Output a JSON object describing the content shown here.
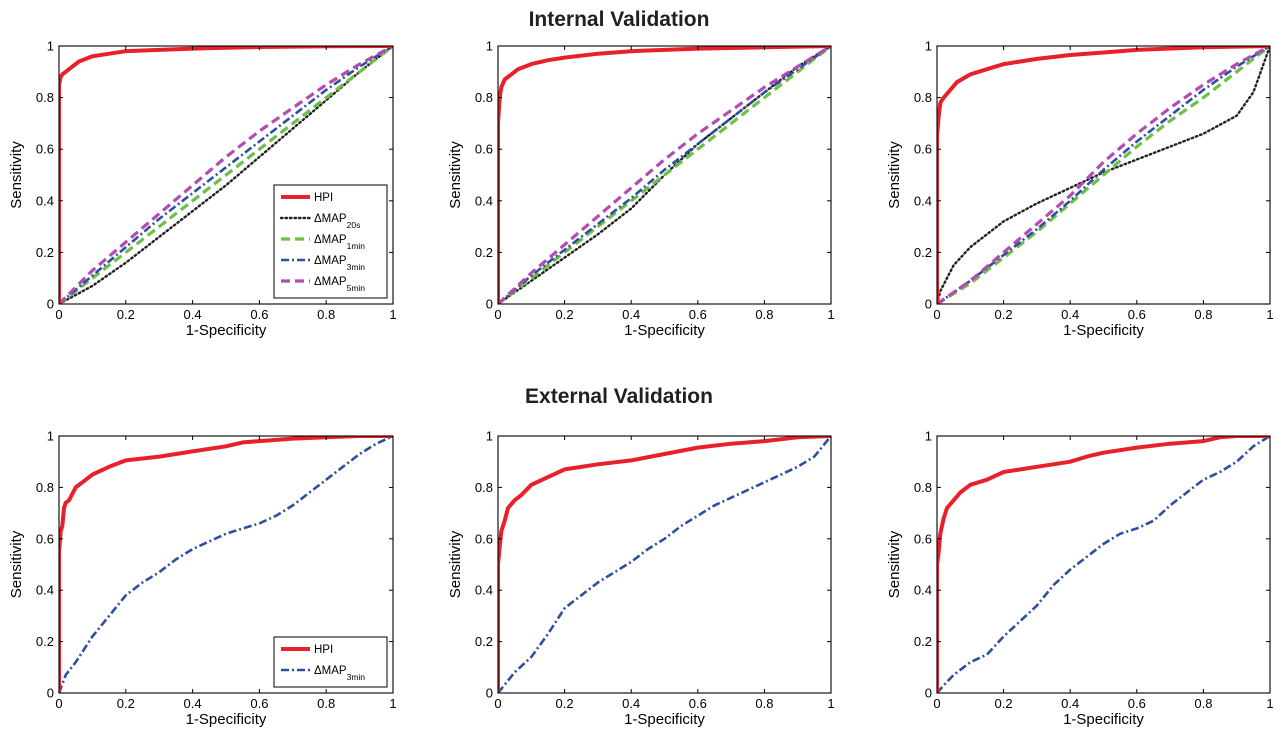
{
  "figure": {
    "top_section_title": "Internal Validation",
    "bottom_section_title": "External Validation"
  },
  "chart_data": [
    {
      "type": "line",
      "section": "Internal Validation",
      "xlabel": "1-Specificity",
      "ylabel": "Sensitivity",
      "xlim": [
        0,
        1
      ],
      "ylim": [
        0,
        1
      ],
      "xticks": [
        "0",
        "0.2",
        "0.4",
        "0.6",
        "0.8",
        "1"
      ],
      "yticks": [
        "0",
        "0.2",
        "0.4",
        "0.6",
        "0.8",
        "1"
      ],
      "grid": false,
      "legend": {
        "position": "bottom-right",
        "entries": [
          {
            "series": 0,
            "label": "HPI",
            "sub": ""
          },
          {
            "series": 1,
            "label": "ΔMAP",
            "sub": "20s"
          },
          {
            "series": 2,
            "label": "ΔMAP",
            "sub": "1min"
          },
          {
            "series": 3,
            "label": "ΔMAP",
            "sub": "3min"
          },
          {
            "series": 4,
            "label": "ΔMAP",
            "sub": "5min"
          }
        ]
      },
      "series": [
        {
          "name": "HPI",
          "color": "#e8202a",
          "style": "solid",
          "x": [
            0,
            0,
            0.005,
            0.01,
            0.02,
            0.04,
            0.06,
            0.1,
            0.15,
            0.2,
            0.3,
            0.4,
            0.5,
            0.6,
            0.8,
            1.0
          ],
          "y": [
            0,
            0.85,
            0.88,
            0.89,
            0.9,
            0.92,
            0.94,
            0.96,
            0.97,
            0.98,
            0.985,
            0.99,
            0.993,
            0.996,
            0.999,
            1.0
          ]
        },
        {
          "name": "ΔMAP20s",
          "color": "#222222",
          "style": "dotted",
          "x": [
            0,
            0.1,
            0.2,
            0.3,
            0.4,
            0.5,
            0.6,
            0.7,
            0.8,
            0.9,
            1.0
          ],
          "y": [
            0,
            0.07,
            0.16,
            0.26,
            0.36,
            0.46,
            0.57,
            0.68,
            0.79,
            0.9,
            1.0
          ]
        },
        {
          "name": "ΔMAP1min",
          "color": "#6dbf45",
          "style": "dashed",
          "x": [
            0,
            0.1,
            0.2,
            0.3,
            0.4,
            0.5,
            0.6,
            0.7,
            0.8,
            0.9,
            1.0
          ],
          "y": [
            0,
            0.1,
            0.2,
            0.3,
            0.4,
            0.5,
            0.6,
            0.7,
            0.8,
            0.9,
            1.0
          ]
        },
        {
          "name": "ΔMAP3min",
          "color": "#2e4f9e",
          "style": "dashdot",
          "x": [
            0,
            0.1,
            0.2,
            0.3,
            0.4,
            0.5,
            0.6,
            0.7,
            0.8,
            0.9,
            1.0
          ],
          "y": [
            0,
            0.11,
            0.22,
            0.33,
            0.43,
            0.53,
            0.63,
            0.73,
            0.83,
            0.92,
            1.0
          ]
        },
        {
          "name": "ΔMAP5min",
          "color": "#b44bb4",
          "style": "dashed",
          "x": [
            0,
            0.1,
            0.2,
            0.3,
            0.4,
            0.5,
            0.6,
            0.7,
            0.8,
            0.9,
            1.0
          ],
          "y": [
            0,
            0.13,
            0.24,
            0.35,
            0.46,
            0.57,
            0.67,
            0.76,
            0.85,
            0.93,
            1.0
          ]
        }
      ]
    },
    {
      "type": "line",
      "section": "Internal Validation",
      "xlabel": "1-Specificity",
      "ylabel": "Sensitivity",
      "xlim": [
        0,
        1
      ],
      "ylim": [
        0,
        1
      ],
      "xticks": [
        "0",
        "0.2",
        "0.4",
        "0.6",
        "0.8",
        "1"
      ],
      "yticks": [
        "0",
        "0.2",
        "0.4",
        "0.6",
        "0.8",
        "1"
      ],
      "grid": false,
      "series": [
        {
          "name": "HPI",
          "color": "#e8202a",
          "style": "solid",
          "x": [
            0,
            0,
            0.005,
            0.01,
            0.02,
            0.04,
            0.06,
            0.1,
            0.15,
            0.2,
            0.3,
            0.4,
            0.5,
            0.6,
            0.8,
            1.0
          ],
          "y": [
            0,
            0.7,
            0.8,
            0.84,
            0.87,
            0.89,
            0.91,
            0.93,
            0.945,
            0.955,
            0.97,
            0.98,
            0.985,
            0.99,
            0.995,
            1.0
          ]
        },
        {
          "name": "ΔMAP20s",
          "color": "#222222",
          "style": "dotted",
          "x": [
            0,
            0.1,
            0.2,
            0.3,
            0.4,
            0.5,
            0.6,
            0.7,
            0.8,
            0.9,
            1.0
          ],
          "y": [
            0,
            0.09,
            0.18,
            0.27,
            0.37,
            0.5,
            0.62,
            0.72,
            0.82,
            0.92,
            1.0
          ]
        },
        {
          "name": "ΔMAP1min",
          "color": "#6dbf45",
          "style": "dashed",
          "x": [
            0,
            0.1,
            0.2,
            0.3,
            0.4,
            0.5,
            0.6,
            0.7,
            0.8,
            0.9,
            1.0
          ],
          "y": [
            0,
            0.1,
            0.2,
            0.3,
            0.4,
            0.5,
            0.6,
            0.7,
            0.8,
            0.9,
            1.0
          ]
        },
        {
          "name": "ΔMAP3min",
          "color": "#2e4f9e",
          "style": "dashdot",
          "x": [
            0,
            0.1,
            0.2,
            0.3,
            0.4,
            0.5,
            0.6,
            0.7,
            0.8,
            0.9,
            1.0
          ],
          "y": [
            0,
            0.11,
            0.21,
            0.31,
            0.41,
            0.52,
            0.62,
            0.72,
            0.82,
            0.91,
            1.0
          ]
        },
        {
          "name": "ΔMAP5min",
          "color": "#b44bb4",
          "style": "dashed",
          "x": [
            0,
            0.1,
            0.2,
            0.3,
            0.4,
            0.5,
            0.6,
            0.7,
            0.8,
            0.9,
            1.0
          ],
          "y": [
            0,
            0.12,
            0.23,
            0.34,
            0.45,
            0.56,
            0.66,
            0.75,
            0.84,
            0.92,
            1.0
          ]
        }
      ]
    },
    {
      "type": "line",
      "section": "Internal Validation",
      "xlabel": "1-Specificity",
      "ylabel": "Sensitivity",
      "xlim": [
        0,
        1
      ],
      "ylim": [
        0,
        1
      ],
      "xticks": [
        "0",
        "0.2",
        "0.4",
        "0.6",
        "0.8",
        "1"
      ],
      "yticks": [
        "0",
        "0.2",
        "0.4",
        "0.6",
        "0.8",
        "1"
      ],
      "grid": false,
      "series": [
        {
          "name": "HPI",
          "color": "#e8202a",
          "style": "solid",
          "x": [
            0,
            0,
            0.005,
            0.01,
            0.02,
            0.04,
            0.06,
            0.1,
            0.15,
            0.2,
            0.3,
            0.4,
            0.5,
            0.6,
            0.8,
            1.0
          ],
          "y": [
            0,
            0.65,
            0.73,
            0.78,
            0.8,
            0.83,
            0.86,
            0.89,
            0.91,
            0.93,
            0.95,
            0.965,
            0.975,
            0.985,
            0.995,
            1.0
          ]
        },
        {
          "name": "ΔMAP20s",
          "color": "#222222",
          "style": "dotted",
          "x": [
            0,
            0.01,
            0.05,
            0.1,
            0.2,
            0.3,
            0.4,
            0.5,
            0.6,
            0.7,
            0.8,
            0.9,
            0.95,
            1.0
          ],
          "y": [
            0,
            0.05,
            0.15,
            0.22,
            0.32,
            0.39,
            0.45,
            0.51,
            0.56,
            0.61,
            0.66,
            0.73,
            0.82,
            1.0
          ]
        },
        {
          "name": "ΔMAP1min",
          "color": "#6dbf45",
          "style": "dashed",
          "x": [
            0,
            0.1,
            0.2,
            0.3,
            0.4,
            0.5,
            0.6,
            0.7,
            0.8,
            0.9,
            1.0
          ],
          "y": [
            0,
            0.08,
            0.18,
            0.28,
            0.39,
            0.5,
            0.61,
            0.71,
            0.8,
            0.9,
            1.0
          ]
        },
        {
          "name": "ΔMAP3min",
          "color": "#2e4f9e",
          "style": "dashdot",
          "x": [
            0,
            0.1,
            0.2,
            0.3,
            0.4,
            0.5,
            0.6,
            0.7,
            0.8,
            0.9,
            1.0
          ],
          "y": [
            0,
            0.09,
            0.19,
            0.29,
            0.4,
            0.52,
            0.63,
            0.73,
            0.83,
            0.92,
            1.0
          ]
        },
        {
          "name": "ΔMAP5min",
          "color": "#b44bb4",
          "style": "dashed",
          "x": [
            0,
            0.1,
            0.2,
            0.3,
            0.4,
            0.5,
            0.6,
            0.7,
            0.8,
            0.9,
            1.0
          ],
          "y": [
            0,
            0.09,
            0.2,
            0.31,
            0.42,
            0.55,
            0.66,
            0.76,
            0.85,
            0.93,
            1.0
          ]
        }
      ]
    },
    {
      "type": "line",
      "section": "External Validation",
      "xlabel": "1-Specificity",
      "ylabel": "Sensitivity",
      "xlim": [
        0,
        1
      ],
      "ylim": [
        0,
        1
      ],
      "xticks": [
        "0",
        "0.2",
        "0.4",
        "0.6",
        "0.8",
        "1"
      ],
      "yticks": [
        "0",
        "0.2",
        "0.4",
        "0.6",
        "0.8",
        "1"
      ],
      "grid": false,
      "legend": {
        "position": "bottom-right",
        "entries": [
          {
            "series": 0,
            "label": "HPI",
            "sub": ""
          },
          {
            "series": 1,
            "label": "ΔMAP",
            "sub": "3min"
          }
        ]
      },
      "series": [
        {
          "name": "HPI",
          "color": "#e8202a",
          "style": "solid",
          "x": [
            0,
            0,
            0.005,
            0.01,
            0.015,
            0.02,
            0.03,
            0.05,
            0.07,
            0.1,
            0.15,
            0.2,
            0.3,
            0.4,
            0.5,
            0.55,
            0.6,
            0.7,
            0.8,
            0.9,
            1.0
          ],
          "y": [
            0,
            0.55,
            0.63,
            0.65,
            0.72,
            0.74,
            0.75,
            0.8,
            0.82,
            0.85,
            0.88,
            0.905,
            0.92,
            0.94,
            0.96,
            0.975,
            0.98,
            0.99,
            0.995,
            1.0,
            1.0
          ]
        },
        {
          "name": "ΔMAP3min",
          "color": "#2e4f9e",
          "style": "dashdot",
          "x": [
            0,
            0.02,
            0.05,
            0.1,
            0.15,
            0.2,
            0.25,
            0.3,
            0.35,
            0.4,
            0.45,
            0.5,
            0.55,
            0.6,
            0.65,
            0.7,
            0.75,
            0.8,
            0.85,
            0.9,
            0.95,
            1.0
          ],
          "y": [
            0,
            0.07,
            0.12,
            0.22,
            0.3,
            0.38,
            0.43,
            0.47,
            0.52,
            0.56,
            0.59,
            0.62,
            0.64,
            0.66,
            0.69,
            0.73,
            0.78,
            0.83,
            0.88,
            0.93,
            0.97,
            1.0
          ]
        }
      ]
    },
    {
      "type": "line",
      "section": "External Validation",
      "xlabel": "1-Specificity",
      "ylabel": "Sensitivity",
      "xlim": [
        0,
        1
      ],
      "ylim": [
        0,
        1
      ],
      "xticks": [
        "0",
        "0.2",
        "0.4",
        "0.6",
        "0.8",
        "1"
      ],
      "yticks": [
        "0",
        "0.2",
        "0.4",
        "0.6",
        "0.8",
        "1"
      ],
      "grid": false,
      "series": [
        {
          "name": "HPI",
          "color": "#e8202a",
          "style": "solid",
          "x": [
            0,
            0,
            0.005,
            0.01,
            0.02,
            0.03,
            0.05,
            0.07,
            0.1,
            0.15,
            0.2,
            0.3,
            0.4,
            0.5,
            0.6,
            0.7,
            0.8,
            0.9,
            1.0
          ],
          "y": [
            0,
            0.5,
            0.57,
            0.63,
            0.67,
            0.72,
            0.75,
            0.77,
            0.81,
            0.84,
            0.87,
            0.89,
            0.905,
            0.93,
            0.955,
            0.97,
            0.98,
            0.995,
            1.0
          ]
        },
        {
          "name": "ΔMAP3min",
          "color": "#2e4f9e",
          "style": "dashdot",
          "x": [
            0,
            0.05,
            0.1,
            0.15,
            0.2,
            0.25,
            0.3,
            0.35,
            0.4,
            0.45,
            0.5,
            0.55,
            0.6,
            0.65,
            0.7,
            0.75,
            0.8,
            0.85,
            0.9,
            0.95,
            1.0
          ],
          "y": [
            0,
            0.08,
            0.14,
            0.23,
            0.33,
            0.38,
            0.43,
            0.47,
            0.51,
            0.56,
            0.6,
            0.65,
            0.69,
            0.73,
            0.76,
            0.79,
            0.82,
            0.85,
            0.88,
            0.92,
            1.0
          ]
        }
      ]
    },
    {
      "type": "line",
      "section": "External Validation",
      "xlabel": "1-Specificity",
      "ylabel": "Sensitivity",
      "xlim": [
        0,
        1
      ],
      "ylim": [
        0,
        1
      ],
      "xticks": [
        "0",
        "0.2",
        "0.4",
        "0.6",
        "0.8",
        "1"
      ],
      "yticks": [
        "0",
        "0.2",
        "0.4",
        "0.6",
        "0.8",
        "1"
      ],
      "grid": false,
      "series": [
        {
          "name": "HPI",
          "color": "#e8202a",
          "style": "solid",
          "x": [
            0,
            0,
            0.005,
            0.01,
            0.02,
            0.03,
            0.05,
            0.07,
            0.1,
            0.15,
            0.2,
            0.3,
            0.4,
            0.45,
            0.5,
            0.6,
            0.7,
            0.8,
            0.85,
            0.9,
            1.0
          ],
          "y": [
            0,
            0.5,
            0.55,
            0.62,
            0.68,
            0.72,
            0.75,
            0.78,
            0.81,
            0.83,
            0.86,
            0.88,
            0.9,
            0.92,
            0.935,
            0.955,
            0.97,
            0.98,
            0.995,
            1.0,
            1.0
          ]
        },
        {
          "name": "ΔMAP3min",
          "color": "#2e4f9e",
          "style": "dashdot",
          "x": [
            0,
            0.02,
            0.05,
            0.1,
            0.15,
            0.2,
            0.25,
            0.3,
            0.35,
            0.4,
            0.45,
            0.5,
            0.55,
            0.6,
            0.65,
            0.7,
            0.75,
            0.8,
            0.85,
            0.9,
            0.95,
            1.0
          ],
          "y": [
            0,
            0.03,
            0.07,
            0.12,
            0.15,
            0.22,
            0.28,
            0.34,
            0.42,
            0.48,
            0.53,
            0.58,
            0.62,
            0.64,
            0.67,
            0.73,
            0.78,
            0.83,
            0.86,
            0.9,
            0.96,
            1.0
          ]
        }
      ]
    }
  ]
}
